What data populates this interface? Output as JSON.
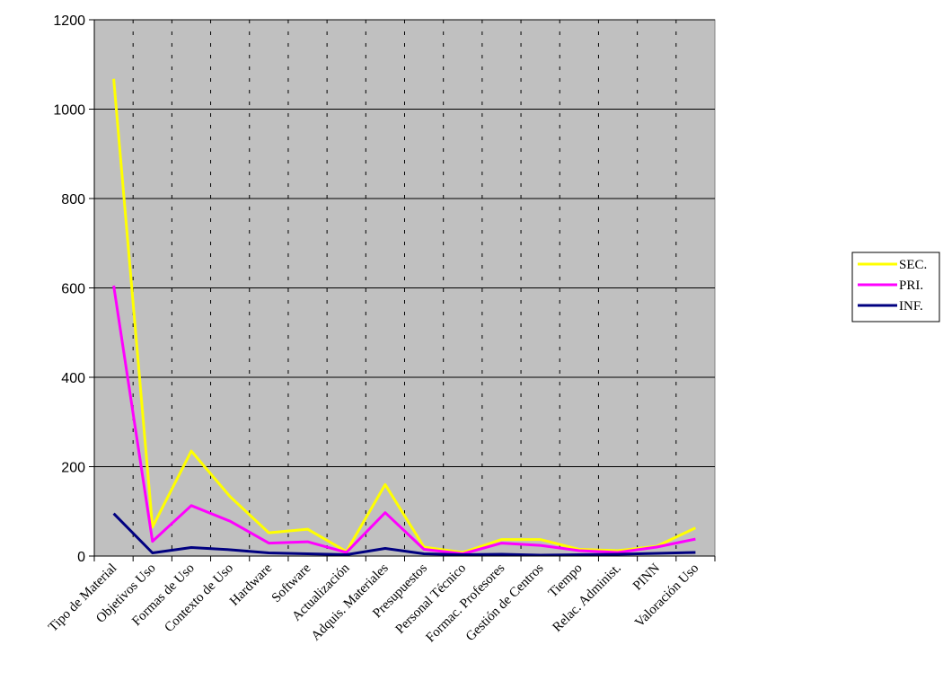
{
  "chart_data": {
    "type": "line",
    "title": "",
    "xlabel": "",
    "ylabel": "",
    "categories": [
      "Tipo de Material",
      "Objetivos Uso",
      "Formas de Uso",
      "Contexto de Uso",
      "Hardware",
      "Software",
      "Actualización",
      "Adquis. Materiales",
      "Presupuestos",
      "Personal Técnico",
      "Formac. Profesores",
      "Gestión de Centros",
      "Tiempo",
      "Relac. Administ.",
      "PINN",
      "Valoración Uso"
    ],
    "ylim": [
      0,
      1200
    ],
    "yticks": [
      "0",
      "200",
      "400",
      "600",
      "800",
      "1000",
      "1200"
    ],
    "grid": "horizontal solid, vertical dashed",
    "plot_background": "#c0c0c0",
    "legend_position": "right",
    "series": [
      {
        "name": "SEC.",
        "color": "#ffff00",
        "values": [
          1068,
          65,
          235,
          133,
          52,
          60,
          10,
          160,
          20,
          8,
          37,
          37,
          15,
          12,
          22,
          63
        ]
      },
      {
        "name": "PRI.",
        "color": "#ff00ff",
        "values": [
          605,
          33,
          113,
          78,
          29,
          32,
          8,
          97,
          15,
          5,
          29,
          24,
          12,
          8,
          20,
          38
        ]
      },
      {
        "name": "INF.",
        "color": "#000080",
        "values": [
          95,
          7,
          19,
          14,
          7,
          5,
          3,
          17,
          5,
          3,
          4,
          2,
          3,
          4,
          6,
          8
        ]
      }
    ]
  }
}
